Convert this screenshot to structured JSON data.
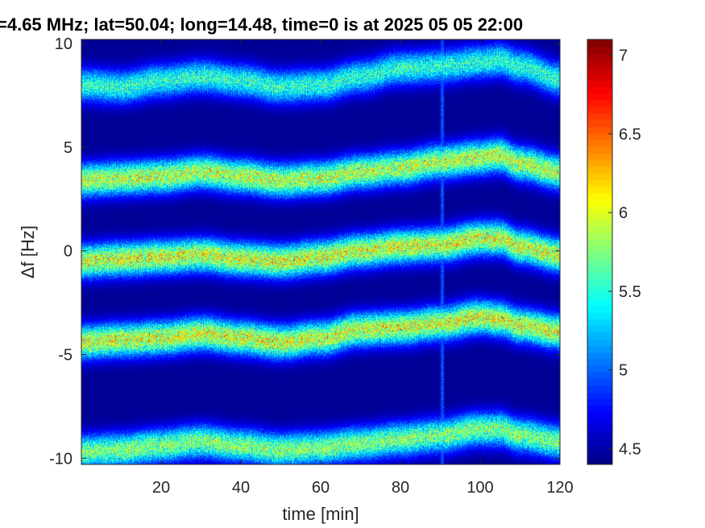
{
  "chart_data": {
    "type": "heatmap",
    "title": "=4.65 MHz;  lat=50.04; long=14.48, time=0 is at 2025 05 05 22:00",
    "xlabel": "time [min]",
    "ylabel": "Δf [Hz]",
    "xlim": [
      0,
      120
    ],
    "ylim": [
      -10.3,
      10.2
    ],
    "x_ticks": [
      20,
      40,
      60,
      80,
      100,
      120
    ],
    "x_tick_labels": [
      "20",
      "40",
      "60",
      "80",
      "100",
      "120"
    ],
    "y_ticks": [
      -10,
      -5,
      0,
      5,
      10
    ],
    "y_tick_labels": [
      "-10",
      "-5",
      "0",
      "5",
      "10"
    ],
    "colormap": "jet",
    "colorbar": {
      "range": [
        4.4,
        7.1
      ],
      "ticks": [
        4.5,
        5,
        5.5,
        6,
        6.5,
        7
      ],
      "tick_labels": [
        "4.5",
        "5",
        "5.5",
        "6",
        "6.5",
        "7"
      ]
    },
    "background_value": 4.45,
    "bands": [
      {
        "center_x": [
          0,
          10,
          20,
          30,
          40,
          50,
          60,
          70,
          80,
          90,
          100,
          105,
          110,
          120
        ],
        "center_y": [
          8.0,
          7.9,
          8.2,
          8.4,
          8.2,
          7.9,
          8.0,
          8.4,
          8.8,
          8.9,
          9.1,
          9.2,
          8.9,
          8.3
        ],
        "peak": 5.8
      },
      {
        "center_x": [
          0,
          10,
          20,
          30,
          40,
          50,
          60,
          70,
          80,
          90,
          100,
          105,
          110,
          120
        ],
        "center_y": [
          3.4,
          3.5,
          3.6,
          3.8,
          3.6,
          3.4,
          3.5,
          3.8,
          4.0,
          4.3,
          4.5,
          4.6,
          4.2,
          3.8
        ],
        "peak": 6.3
      },
      {
        "center_x": [
          0,
          10,
          20,
          30,
          40,
          50,
          60,
          70,
          80,
          90,
          100,
          105,
          110,
          120
        ],
        "center_y": [
          -0.5,
          -0.4,
          -0.3,
          -0.2,
          -0.4,
          -0.5,
          -0.3,
          0.0,
          0.2,
          0.3,
          0.6,
          0.6,
          0.2,
          -0.2
        ],
        "peak": 6.4
      },
      {
        "center_x": [
          0,
          10,
          20,
          30,
          40,
          50,
          60,
          70,
          80,
          90,
          100,
          105,
          110,
          120
        ],
        "center_y": [
          -4.4,
          -4.3,
          -4.2,
          -4.0,
          -4.2,
          -4.4,
          -4.2,
          -3.8,
          -3.7,
          -3.5,
          -3.2,
          -3.3,
          -3.6,
          -3.9
        ],
        "peak": 6.4
      },
      {
        "center_x": [
          0,
          10,
          20,
          30,
          40,
          50,
          60,
          70,
          80,
          90,
          100,
          105,
          110,
          120
        ],
        "center_y": [
          -9.7,
          -9.6,
          -9.4,
          -9.2,
          -9.4,
          -9.6,
          -9.5,
          -9.3,
          -9.1,
          -8.9,
          -8.6,
          -8.6,
          -8.9,
          -9.2
        ],
        "peak": 6.1
      }
    ],
    "vertical_streak_x": 90.5,
    "grid": false
  }
}
